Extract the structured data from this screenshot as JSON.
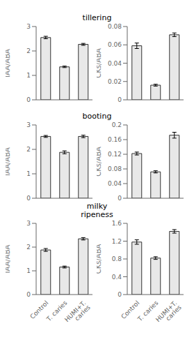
{
  "chart_data": [
    {
      "type": "bar",
      "title": "tillering",
      "ylabel": "IAA/ABA",
      "categories": [
        "Control",
        "T. caries",
        "HUMI+T. caries"
      ],
      "values": [
        2.55,
        1.35,
        2.27
      ],
      "errors": [
        0.05,
        0.03,
        0.04
      ],
      "color": "#e8e8e8",
      "ylim": [
        0,
        3
      ],
      "yticks": [
        0,
        1,
        2,
        3
      ],
      "tick_labels": "y"
    },
    {
      "type": "bar",
      "ylabel": "CKs/ABA",
      "categories": [
        "Control",
        "T. caries",
        "HUMI+T. caries"
      ],
      "values": [
        0.059,
        0.016,
        0.071
      ],
      "errors": [
        0.003,
        0.001,
        0.002
      ],
      "color": "#e8e8e8",
      "ylim": [
        0,
        0.08
      ],
      "yticks": [
        0,
        0.02,
        0.04,
        0.06,
        0.08
      ],
      "tick_labels": "y"
    },
    {
      "type": "bar",
      "title": "booting",
      "ylabel": "IAA/ABA",
      "categories": [
        "Control",
        "T. caries",
        "HUMI+T. caries"
      ],
      "values": [
        2.53,
        1.88,
        2.53
      ],
      "errors": [
        0.04,
        0.06,
        0.05
      ],
      "color": "#e8e8e8",
      "ylim": [
        0,
        3
      ],
      "yticks": [
        0,
        1,
        2,
        3
      ],
      "tick_labels": "y"
    },
    {
      "type": "bar",
      "ylabel": "CKs/ABA",
      "categories": [
        "Control",
        "T. caries",
        "HUMI+T. caries"
      ],
      "values": [
        0.122,
        0.072,
        0.172
      ],
      "errors": [
        0.004,
        0.003,
        0.008
      ],
      "color": "#e8e8e8",
      "ylim": [
        0,
        0.2
      ],
      "yticks": [
        0,
        0.04,
        0.08,
        0.12,
        0.16,
        0.2
      ],
      "tick_labels": "y"
    },
    {
      "type": "bar",
      "title": "milky\nripeness",
      "ylabel": "IAA/ABA",
      "categories": [
        "Control",
        "T. caries",
        "HUMI+T. caries"
      ],
      "values": [
        1.88,
        1.16,
        2.35
      ],
      "errors": [
        0.06,
        0.04,
        0.05
      ],
      "color": "#e8e8e8",
      "ylim": [
        0,
        3
      ],
      "yticks": [
        0,
        1,
        2,
        3
      ]
    },
    {
      "type": "bar",
      "ylabel": "CKs/ABA",
      "categories": [
        "Control",
        "T. caries",
        "HUMI+T. caries"
      ],
      "values": [
        1.18,
        0.82,
        1.42
      ],
      "errors": [
        0.05,
        0.03,
        0.04
      ],
      "color": "#e8e8e8",
      "ylim": [
        0,
        1.6
      ],
      "yticks": [
        0,
        0.4,
        0.8,
        1.2,
        1.6
      ]
    }
  ]
}
